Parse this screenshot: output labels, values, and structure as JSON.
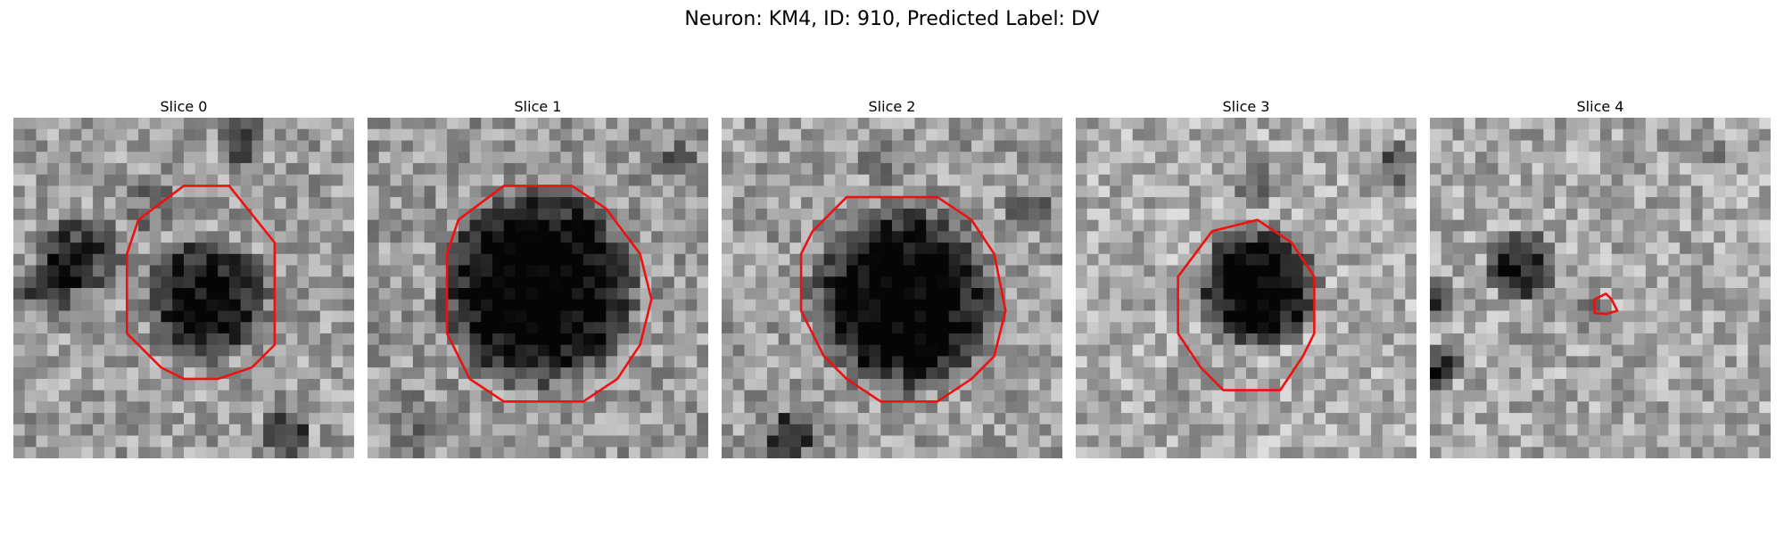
{
  "figure": {
    "title": "Neuron: KM4, ID: 910, Predicted Label: DV"
  },
  "panels": [
    {
      "title": "Slice 0"
    },
    {
      "title": "Slice 1"
    },
    {
      "title": "Slice 2"
    },
    {
      "title": "Slice 3"
    },
    {
      "title": "Slice 4"
    }
  ],
  "colors": {
    "contour": "#ee1111",
    "background": "#ffffff"
  }
}
